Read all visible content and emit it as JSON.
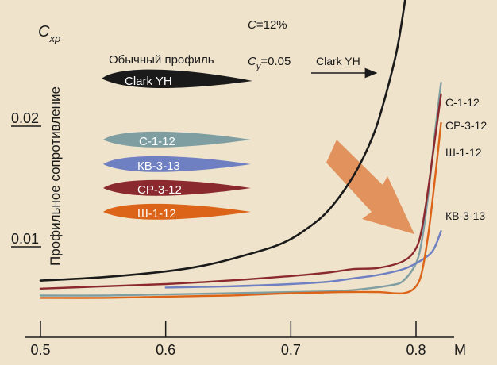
{
  "chart_data": {
    "type": "line",
    "xlabel": "M",
    "ylabel": "Профильное сопротивление",
    "ylabel_symbol": "C",
    "ylabel_symbol_sub": "xp",
    "xlim": [
      0.5,
      0.82
    ],
    "x_ticks": [
      0.5,
      0.6,
      0.7,
      0.8
    ],
    "x_tick_labels": [
      "0.5",
      "0.6",
      "0.7",
      "0.8"
    ],
    "y_ticks": [
      0.01,
      0.02
    ],
    "y_tick_labels": [
      "0.01",
      "0.02"
    ],
    "annotations": {
      "thickness": "С=12%",
      "thickness_symbol": "С",
      "thickness_value": "=12%",
      "cy": "Сy=0.05",
      "cy_symbol": "С",
      "cy_sub": "y",
      "cy_value": "=0.05",
      "ordinary_profile": "Обычный профиль",
      "arrow_label": "Clark YH"
    },
    "legend_profiles": [
      {
        "label": "Clark YH",
        "color": "#1a1a1a"
      },
      {
        "label": "С-1-12",
        "color": "#7f9ea2"
      },
      {
        "label": "КВ-3-13",
        "color": "#6e7fc2"
      },
      {
        "label": "СР-3-12",
        "color": "#8b2a2e"
      },
      {
        "label": "Ш-1-12",
        "color": "#db6418"
      }
    ],
    "series": [
      {
        "name": "Clark YH",
        "color": "#1a1a1a",
        "x": [
          0.5,
          0.55,
          0.6,
          0.63,
          0.66,
          0.69,
          0.71,
          0.73,
          0.75,
          0.765,
          0.775,
          0.785,
          0.793,
          0.8
        ],
        "y": [
          0.0063,
          0.0066,
          0.0071,
          0.0076,
          0.0084,
          0.0094,
          0.0106,
          0.0124,
          0.0154,
          0.0187,
          0.0221,
          0.0265,
          0.032,
          0.038
        ]
      },
      {
        "name": "С-1-12",
        "color": "#7f9ea2",
        "x": [
          0.5,
          0.55,
          0.6,
          0.65,
          0.7,
          0.74,
          0.76,
          0.78,
          0.79,
          0.8,
          0.805,
          0.81,
          0.815,
          0.82
        ],
        "y": [
          0.005,
          0.005,
          0.0051,
          0.0052,
          0.0053,
          0.0054,
          0.0056,
          0.0059,
          0.0063,
          0.0078,
          0.01,
          0.014,
          0.019,
          0.0235
        ]
      },
      {
        "name": "СР-3-12",
        "color": "#8b2a2e",
        "x": [
          0.5,
          0.55,
          0.6,
          0.65,
          0.7,
          0.73,
          0.75,
          0.77,
          0.79,
          0.8,
          0.805,
          0.81,
          0.815,
          0.82
        ],
        "y": [
          0.0056,
          0.0058,
          0.006,
          0.0063,
          0.0067,
          0.007,
          0.0073,
          0.0074,
          0.008,
          0.0091,
          0.011,
          0.0145,
          0.0185,
          0.0225
        ]
      },
      {
        "name": "КВ-3-13",
        "color": "#6e7fc2",
        "x": [
          0.6,
          0.65,
          0.7,
          0.73,
          0.75,
          0.77,
          0.79,
          0.8,
          0.81,
          0.815,
          0.82
        ],
        "y": [
          0.0057,
          0.0058,
          0.006,
          0.0062,
          0.0065,
          0.0068,
          0.0073,
          0.0078,
          0.0085,
          0.0092,
          0.0106
        ]
      },
      {
        "name": "Ш-1-12",
        "color": "#db6418",
        "x": [
          0.5,
          0.55,
          0.6,
          0.65,
          0.7,
          0.74,
          0.77,
          0.79,
          0.8,
          0.805,
          0.81,
          0.815,
          0.82
        ],
        "y": [
          0.0048,
          0.0048,
          0.0049,
          0.005,
          0.0052,
          0.0053,
          0.0053,
          0.0052,
          0.0058,
          0.0072,
          0.0105,
          0.015,
          0.02
        ]
      }
    ]
  }
}
